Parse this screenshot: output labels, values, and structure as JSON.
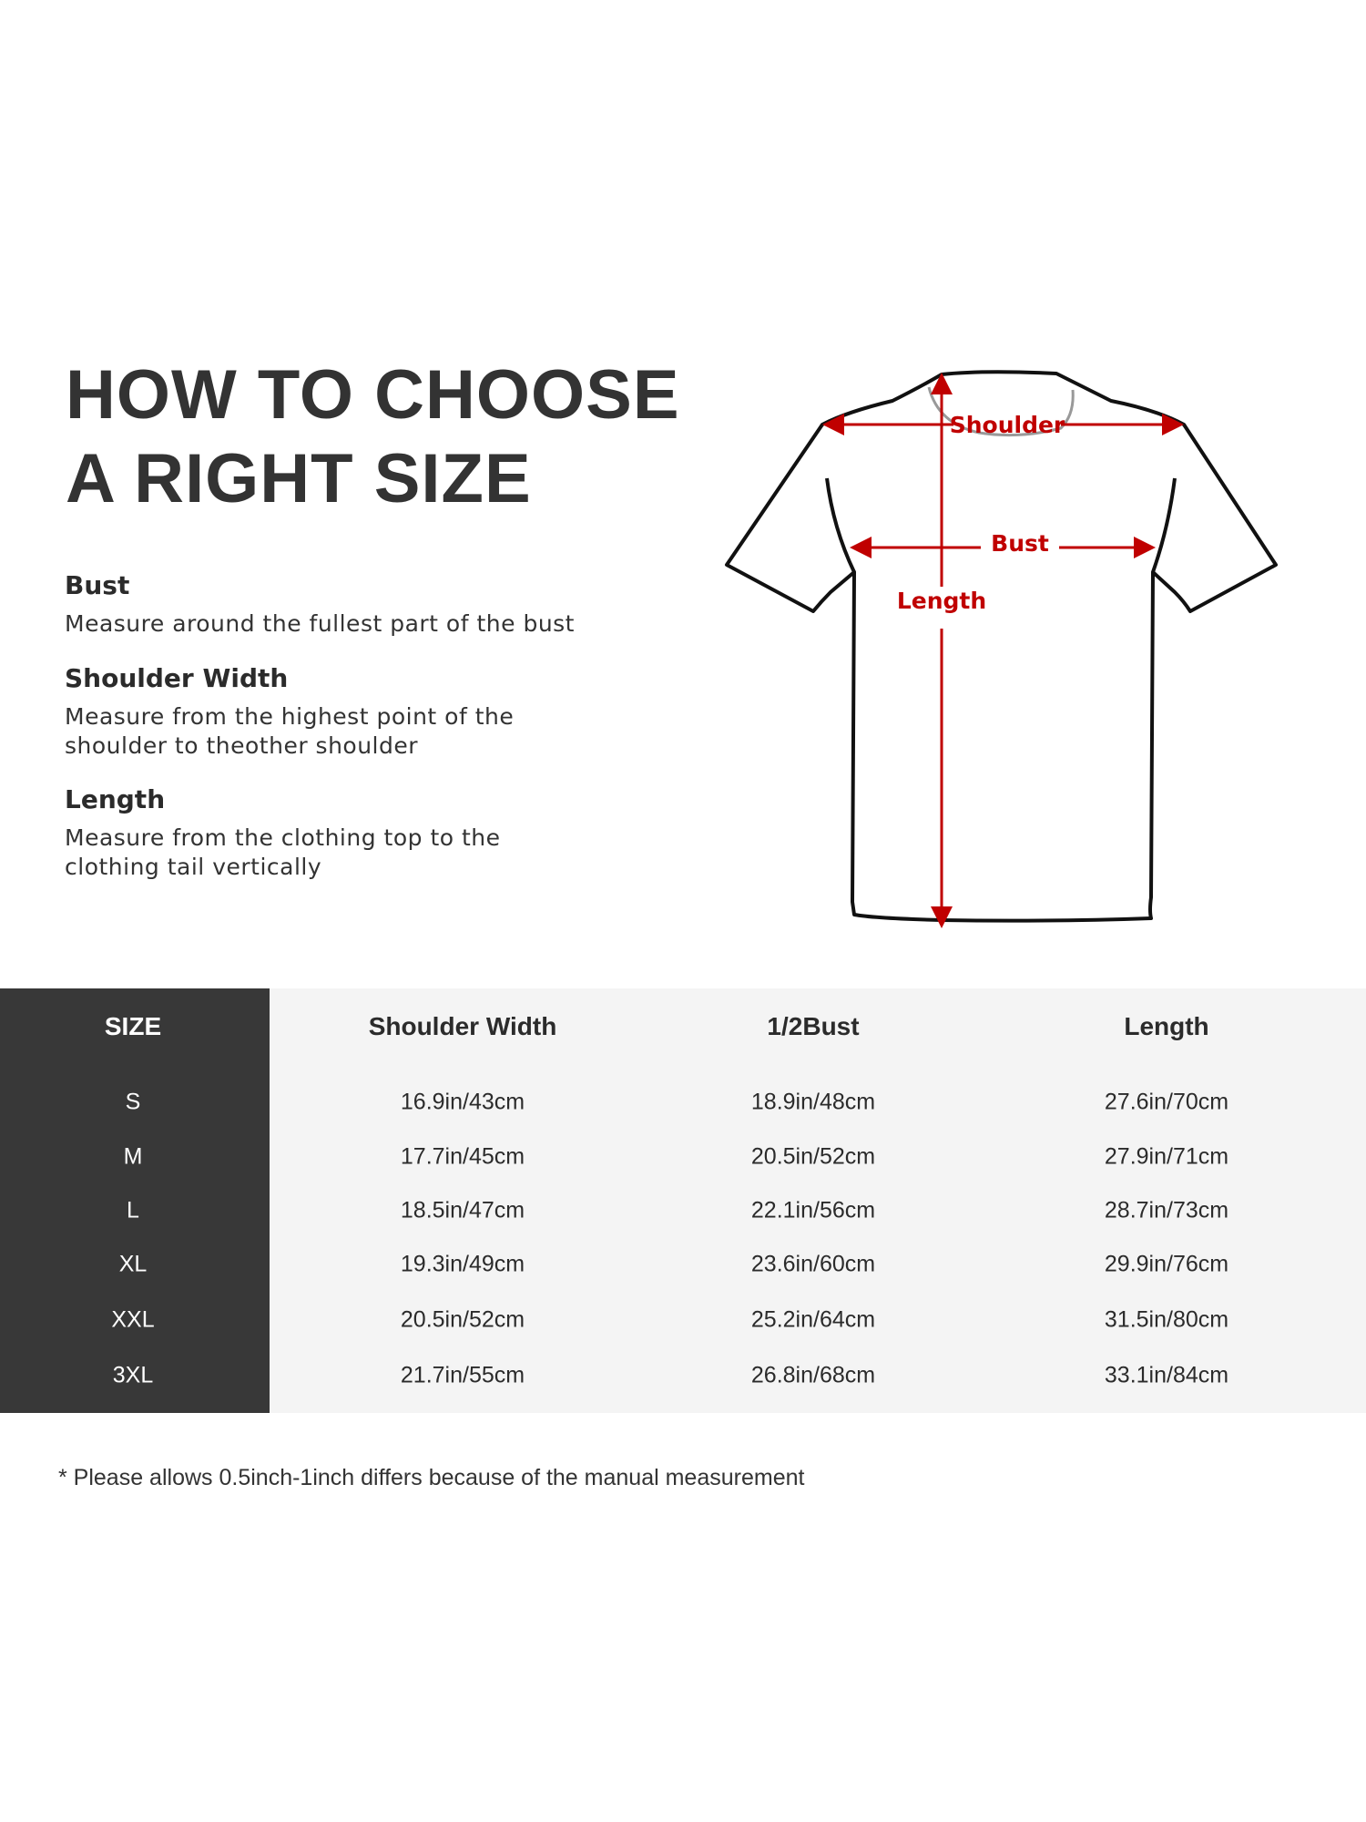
{
  "title_lines": [
    "HOW TO CHOOSE",
    "A RIGHT SIZE"
  ],
  "guide": [
    {
      "heading": "Bust",
      "lines": [
        "Measure around the fullest part of the bust"
      ]
    },
    {
      "heading": "Shoulder Width",
      "lines": [
        "Measure from the highest point of the",
        "shoulder to theother shoulder"
      ]
    },
    {
      "heading": "Length",
      "lines": [
        "Measure from the clothing top to the",
        "clothing tail vertically"
      ]
    }
  ],
  "diagram": {
    "labels": {
      "shoulder": "Shoulder",
      "bust": "Bust",
      "length": "Length"
    },
    "colors": {
      "arrow": "#c00000",
      "outline": "#111111"
    }
  },
  "table": {
    "headers": [
      "SIZE",
      "Shoulder Width",
      "1/2Bust",
      "Length"
    ],
    "rows": [
      [
        "S",
        "16.9in/43cm",
        "18.9in/48cm",
        "27.6in/70cm"
      ],
      [
        "M",
        "17.7in/45cm",
        "20.5in/52cm",
        "27.9in/71cm"
      ],
      [
        "L",
        "18.5in/47cm",
        "22.1in/56cm",
        "28.7in/73cm"
      ],
      [
        "XL",
        "19.3in/49cm",
        "23.6in/60cm",
        "29.9in/76cm"
      ],
      [
        "XXL",
        "20.5in/52cm",
        "25.2in/64cm",
        "31.5in/80cm"
      ],
      [
        "3XL",
        "21.7in/55cm",
        "26.8in/68cm",
        "33.1in/84cm"
      ]
    ],
    "colors": {
      "size_column": "#383838",
      "body": "#f4f4f4"
    }
  },
  "footnote": "* Please allows 0.5inch-1inch differs because of the  manual measurement"
}
